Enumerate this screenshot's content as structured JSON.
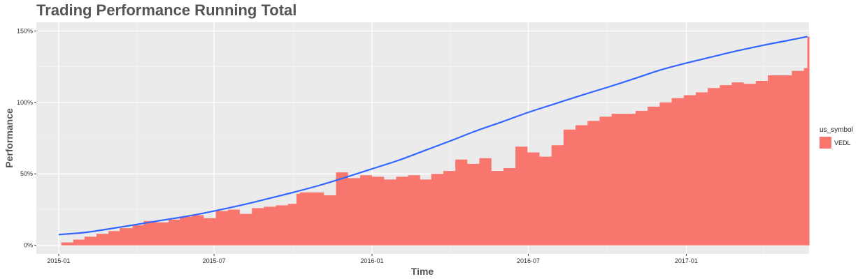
{
  "chart_data": {
    "type": "area",
    "title": "Trading Performance Running Total",
    "xlabel": "Time",
    "ylabel": "Performance",
    "x_range": [
      "2014-12-06",
      "2017-05-24"
    ],
    "ylim": [
      -6,
      156
    ],
    "y_ticks": [
      0,
      50,
      100,
      150
    ],
    "y_tick_labels": [
      "0%",
      "50%",
      "100%",
      "150%"
    ],
    "x_ticks": [
      "2015-01-01",
      "2015-07-01",
      "2016-01-01",
      "2016-07-01",
      "2017-01-01"
    ],
    "x_tick_labels": [
      "2015-01",
      "2015-07",
      "2016-01",
      "2016-07",
      "2017-01"
    ],
    "grid": true,
    "legend": {
      "title": "us_symbol",
      "position": "right"
    },
    "series": [
      {
        "name": "VEDL",
        "color": "#F8766D",
        "step_points": [
          [
            "2015-01-01",
            0
          ],
          [
            "2015-01-04",
            2
          ],
          [
            "2015-01-18",
            4
          ],
          [
            "2015-01-31",
            6
          ],
          [
            "2015-02-14",
            8
          ],
          [
            "2015-02-28",
            10
          ],
          [
            "2015-03-13",
            12
          ],
          [
            "2015-03-28",
            14
          ],
          [
            "2015-04-10",
            17
          ],
          [
            "2015-04-24",
            16
          ],
          [
            "2015-05-09",
            18
          ],
          [
            "2015-05-22",
            20
          ],
          [
            "2015-06-05",
            21
          ],
          [
            "2015-06-19",
            19
          ],
          [
            "2015-07-03",
            24
          ],
          [
            "2015-07-17",
            25
          ],
          [
            "2015-07-31",
            22
          ],
          [
            "2015-08-14",
            26
          ],
          [
            "2015-08-28",
            27
          ],
          [
            "2015-09-11",
            28
          ],
          [
            "2015-09-25",
            29
          ],
          [
            "2015-10-05",
            36
          ],
          [
            "2015-10-09",
            37
          ],
          [
            "2015-10-23",
            37
          ],
          [
            "2015-11-06",
            35
          ],
          [
            "2015-11-20",
            51
          ],
          [
            "2015-12-04",
            47
          ],
          [
            "2015-12-18",
            49
          ],
          [
            "2016-01-01",
            48
          ],
          [
            "2016-01-15",
            46
          ],
          [
            "2016-01-29",
            48
          ],
          [
            "2016-02-12",
            49
          ],
          [
            "2016-02-26",
            46
          ],
          [
            "2016-03-10",
            50
          ],
          [
            "2016-03-24",
            52
          ],
          [
            "2016-04-07",
            60
          ],
          [
            "2016-04-21",
            57
          ],
          [
            "2016-05-05",
            61
          ],
          [
            "2016-05-19",
            52
          ],
          [
            "2016-06-02",
            54
          ],
          [
            "2016-06-16",
            69
          ],
          [
            "2016-06-30",
            65
          ],
          [
            "2016-07-14",
            62
          ],
          [
            "2016-07-28",
            70
          ],
          [
            "2016-08-11",
            81
          ],
          [
            "2016-08-25",
            84
          ],
          [
            "2016-09-08",
            87
          ],
          [
            "2016-09-22",
            90
          ],
          [
            "2016-10-06",
            92
          ],
          [
            "2016-10-20",
            92
          ],
          [
            "2016-11-03",
            94
          ],
          [
            "2016-11-17",
            97
          ],
          [
            "2016-12-01",
            100
          ],
          [
            "2016-12-15",
            103
          ],
          [
            "2016-12-29",
            105
          ],
          [
            "2017-01-12",
            107
          ],
          [
            "2017-01-26",
            110
          ],
          [
            "2017-02-09",
            112
          ],
          [
            "2017-02-23",
            114
          ],
          [
            "2017-03-09",
            113
          ],
          [
            "2017-03-23",
            115
          ],
          [
            "2017-04-06",
            119
          ],
          [
            "2017-04-20",
            119
          ],
          [
            "2017-05-04",
            122
          ],
          [
            "2017-05-18",
            124
          ],
          [
            "2017-05-22",
            146
          ]
        ]
      },
      {
        "name": "",
        "color": "#3366FF",
        "type": "line",
        "points": [
          [
            "2015-01-01",
            7.5
          ],
          [
            "2015-02-01",
            9
          ],
          [
            "2015-03-01",
            11.5
          ],
          [
            "2015-04-01",
            14.5
          ],
          [
            "2015-05-01",
            17.5
          ],
          [
            "2015-06-01",
            20.5
          ],
          [
            "2015-07-01",
            24
          ],
          [
            "2015-08-01",
            28
          ],
          [
            "2015-09-01",
            32.5
          ],
          [
            "2015-10-01",
            37
          ],
          [
            "2015-11-01",
            42
          ],
          [
            "2015-12-01",
            47.5
          ],
          [
            "2016-01-01",
            53.5
          ],
          [
            "2016-02-01",
            59.5
          ],
          [
            "2016-03-01",
            66
          ],
          [
            "2016-04-01",
            73
          ],
          [
            "2016-05-01",
            80
          ],
          [
            "2016-06-01",
            86.5
          ],
          [
            "2016-07-01",
            93
          ],
          [
            "2016-08-01",
            99
          ],
          [
            "2016-09-01",
            105
          ],
          [
            "2016-10-01",
            110.5
          ],
          [
            "2016-11-01",
            116.5
          ],
          [
            "2016-12-01",
            122.5
          ],
          [
            "2017-01-01",
            127.5
          ],
          [
            "2017-02-01",
            132
          ],
          [
            "2017-03-01",
            136
          ],
          [
            "2017-04-01",
            140
          ],
          [
            "2017-05-01",
            143.5
          ],
          [
            "2017-05-22",
            146
          ]
        ]
      }
    ]
  }
}
